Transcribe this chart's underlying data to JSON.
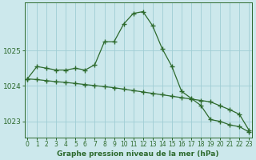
{
  "title": "Graphe pression niveau de la mer (hPa)",
  "line1_x": [
    0,
    1,
    2,
    3,
    4,
    5,
    6,
    7,
    8,
    9,
    10,
    11,
    12,
    13,
    14,
    15,
    16,
    17,
    18,
    19,
    20,
    21,
    22,
    23
  ],
  "line1_y": [
    1024.2,
    1024.55,
    1024.5,
    1024.45,
    1024.45,
    1024.5,
    1024.45,
    1024.6,
    1025.25,
    1025.25,
    1025.75,
    1026.05,
    1026.1,
    1025.7,
    1025.05,
    1024.55,
    1023.85,
    1023.65,
    1023.45,
    1023.05,
    1023.0,
    1022.9,
    1022.85,
    1022.7
  ],
  "line2_x": [
    0,
    1,
    2,
    3,
    4,
    5,
    6,
    7,
    8,
    9,
    10,
    11,
    12,
    13,
    14,
    15,
    16,
    17,
    18,
    19,
    20,
    21,
    22,
    23
  ],
  "line2_y": [
    1024.2,
    1024.18,
    1024.15,
    1024.12,
    1024.1,
    1024.07,
    1024.04,
    1024.01,
    1023.98,
    1023.95,
    1023.91,
    1023.87,
    1023.83,
    1023.79,
    1023.75,
    1023.71,
    1023.67,
    1023.63,
    1023.59,
    1023.55,
    1023.44,
    1023.33,
    1023.2,
    1022.75
  ],
  "ylim": [
    1022.55,
    1026.35
  ],
  "yticks": [
    1023,
    1024,
    1025
  ],
  "xticks": [
    0,
    1,
    2,
    3,
    4,
    5,
    6,
    7,
    8,
    9,
    10,
    11,
    12,
    13,
    14,
    15,
    16,
    17,
    18,
    19,
    20,
    21,
    22,
    23
  ],
  "line_color": "#2d6a2d",
  "bg_color": "#cce8ec",
  "grid_color": "#9fcdd4",
  "marker": "+",
  "marker_size": 4,
  "linewidth": 0.9,
  "title_fontsize": 6.5,
  "ytick_fontsize": 6.5,
  "xtick_fontsize": 5.5
}
